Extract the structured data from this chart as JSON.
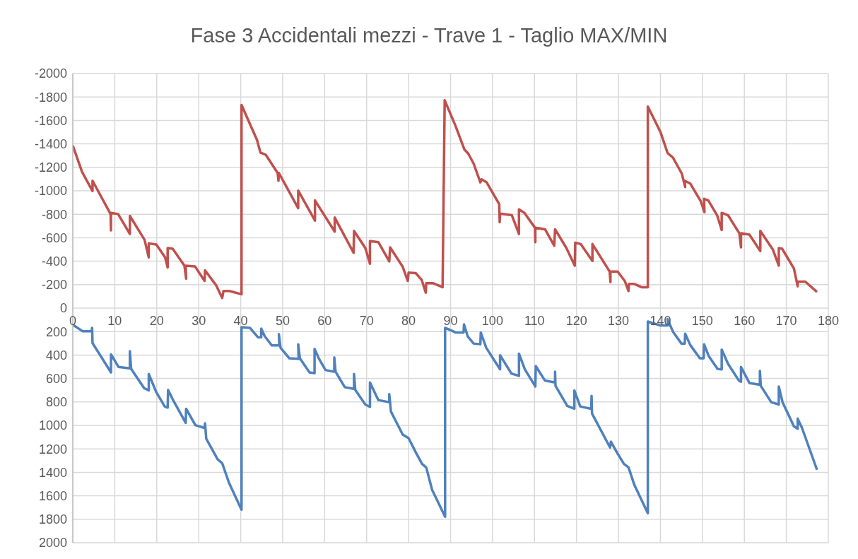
{
  "chart_data": {
    "type": "line",
    "title": "Fase 3 Accidentali mezzi - Trave 1 - Taglio MAX/MIN",
    "xlim": [
      0,
      180
    ],
    "xticks": [
      0,
      10,
      20,
      30,
      40,
      50,
      60,
      70,
      80,
      90,
      100,
      110,
      120,
      130,
      140,
      150,
      160,
      170,
      180
    ],
    "ylim": [
      2000,
      -2000
    ],
    "yticks": [
      -2000,
      -1800,
      -1600,
      -1400,
      -1200,
      -1000,
      -800,
      -600,
      -400,
      -200,
      0,
      200,
      400,
      600,
      800,
      1000,
      1200,
      1400,
      1600,
      1800,
      2000
    ],
    "grid": true,
    "marker": "none",
    "line_style": "solid",
    "series": [
      {
        "color": "#c0504d",
        "x": [
          0,
          2.2,
          4.7,
          4.7,
          9.0,
          9.1,
          9.1,
          10.8,
          13.6,
          13.6,
          17.1,
          18.1,
          18.1,
          19.9,
          22.0,
          22.6,
          22.6,
          23.8,
          26.6,
          27.0,
          26.9,
          29.1,
          31.4,
          31.5,
          34.2,
          35.6,
          35.9,
          37.3,
          40.2,
          40.2,
          43.9,
          44.7,
          46.0,
          48.8,
          49.0,
          49.1,
          53.7,
          53.7,
          57.7,
          57.7,
          62.4,
          62.4,
          66.9,
          67.0,
          69.7,
          70.8,
          70.8,
          72.8,
          75.4,
          75.6,
          78.6,
          79.8,
          80.0,
          81.7,
          83.1,
          84.1,
          84.2,
          85.9,
          88.1,
          88.6,
          91.2,
          93.3,
          94.2,
          95.5,
          97.1,
          97.4,
          98.6,
          101.6,
          101.7,
          101.8,
          104.6,
          106.3,
          106.3,
          107.6,
          110.1,
          110.2,
          110.2,
          112.5,
          114.7,
          114.9,
          117.6,
          119.6,
          119.7,
          121.0,
          123.8,
          123.8,
          127.9,
          128.1,
          128.1,
          129.8,
          131.5,
          132.4,
          132.5,
          133.8,
          135.5,
          137.0,
          137.0,
          140.0,
          141.7,
          143.0,
          145.1,
          145.9,
          145.8,
          147.1,
          149.6,
          150.5,
          150.4,
          151.4,
          153.5,
          154.6,
          154.6,
          156.1,
          158.8,
          159.2,
          159.2,
          161.2,
          163.8,
          163.8,
          166.8,
          168.2,
          168.2,
          169.0,
          171.8,
          172.7,
          172.7,
          174.5,
          177.3
        ],
        "values": [
          -1386,
          -1162,
          -998,
          -1086,
          -802,
          -662,
          -812,
          -802,
          -632,
          -786,
          -582,
          -432,
          -552,
          -542,
          -432,
          -346,
          -512,
          -506,
          -362,
          -252,
          -362,
          -356,
          -232,
          -322,
          -192,
          -86,
          -146,
          -146,
          -118,
          -1732,
          -1432,
          -1326,
          -1306,
          -1152,
          -1086,
          -1152,
          -852,
          -1002,
          -746,
          -918,
          -652,
          -772,
          -472,
          -658,
          -512,
          -378,
          -572,
          -562,
          -398,
          -518,
          -352,
          -232,
          -302,
          -298,
          -242,
          -132,
          -212,
          -212,
          -178,
          -1772,
          -1552,
          -1352,
          -1318,
          -1232,
          -1072,
          -1098,
          -1072,
          -886,
          -732,
          -806,
          -792,
          -632,
          -842,
          -812,
          -686,
          -562,
          -686,
          -672,
          -532,
          -672,
          -512,
          -362,
          -558,
          -546,
          -402,
          -546,
          -312,
          -222,
          -312,
          -312,
          -232,
          -146,
          -206,
          -206,
          -178,
          -178,
          -1718,
          -1502,
          -1322,
          -1282,
          -1146,
          -1032,
          -1086,
          -1062,
          -912,
          -818,
          -932,
          -918,
          -792,
          -666,
          -812,
          -792,
          -638,
          -518,
          -638,
          -626,
          -486,
          -658,
          -498,
          -362,
          -512,
          -506,
          -338,
          -186,
          -226,
          -226,
          -138
        ]
      },
      {
        "color": "#4f81bd",
        "x": [
          0,
          2.4,
          4.5,
          4.6,
          4.7,
          9.1,
          9.1,
          10.9,
          13.6,
          13.6,
          13.9,
          17.0,
          18.1,
          18.1,
          19.9,
          21.9,
          22.6,
          22.7,
          24.1,
          26.9,
          27.0,
          29.2,
          31.4,
          31.5,
          31.8,
          34.5,
          35.6,
          37.2,
          40.2,
          40.2,
          42.2,
          44.1,
          44.9,
          44.9,
          45.7,
          47.4,
          49.2,
          49.1,
          49.5,
          51.6,
          53.8,
          53.7,
          54.1,
          56.4,
          57.6,
          57.6,
          58.6,
          60.2,
          62.3,
          62.3,
          62.6,
          64.8,
          67.0,
          67.0,
          67.3,
          69.7,
          70.8,
          70.8,
          72.8,
          75.4,
          75.4,
          75.8,
          78.6,
          80.0,
          81.7,
          83.2,
          84.2,
          85.6,
          88.7,
          88.7,
          91.3,
          93.1,
          93.2,
          94.1,
          95.5,
          97.1,
          97.2,
          98.5,
          101.8,
          101.8,
          104.5,
          106.3,
          106.3,
          107.7,
          110.2,
          110.3,
          112.5,
          114.9,
          114.9,
          115.0,
          117.8,
          119.5,
          119.5,
          120.9,
          123.5,
          123.6,
          123.7,
          128.0,
          128.2,
          129.6,
          131.3,
          132.4,
          133.8,
          137.0,
          137.0,
          140.0,
          141.8,
          141.7,
          143.0,
          145.0,
          145.8,
          145.9,
          147.1,
          149.4,
          150.3,
          150.4,
          151.5,
          153.6,
          154.6,
          154.6,
          156.1,
          158.7,
          159.2,
          159.2,
          161.2,
          163.7,
          163.7,
          163.9,
          166.4,
          168.2,
          168.2,
          169.1,
          171.8,
          172.7,
          172.7,
          173.7,
          177.3
        ],
        "values": [
          142,
          198,
          198,
          168,
          298,
          548,
          394,
          502,
          514,
          368,
          518,
          682,
          702,
          562,
          718,
          838,
          848,
          698,
          798,
          978,
          858,
          998,
          1022,
          982,
          1114,
          1288,
          1322,
          1488,
          1718,
          162,
          168,
          248,
          248,
          174,
          238,
          318,
          318,
          222,
          338,
          428,
          432,
          308,
          428,
          548,
          554,
          348,
          428,
          528,
          542,
          420,
          542,
          674,
          688,
          562,
          698,
          822,
          842,
          634,
          784,
          802,
          734,
          882,
          1078,
          1108,
          1228,
          1328,
          1358,
          1548,
          1778,
          168,
          208,
          208,
          138,
          242,
          302,
          308,
          208,
          338,
          522,
          402,
          558,
          578,
          388,
          522,
          668,
          494,
          618,
          634,
          542,
          662,
          834,
          858,
          702,
          838,
          858,
          748,
          898,
          1188,
          1138,
          1228,
          1328,
          1358,
          1508,
          1748,
          114,
          148,
          148,
          94,
          202,
          302,
          302,
          218,
          314,
          428,
          428,
          308,
          408,
          518,
          522,
          354,
          474,
          618,
          628,
          502,
          638,
          654,
          534,
          662,
          802,
          822,
          668,
          802,
          1008,
          1028,
          942,
          1018,
          1378
        ]
      }
    ]
  }
}
